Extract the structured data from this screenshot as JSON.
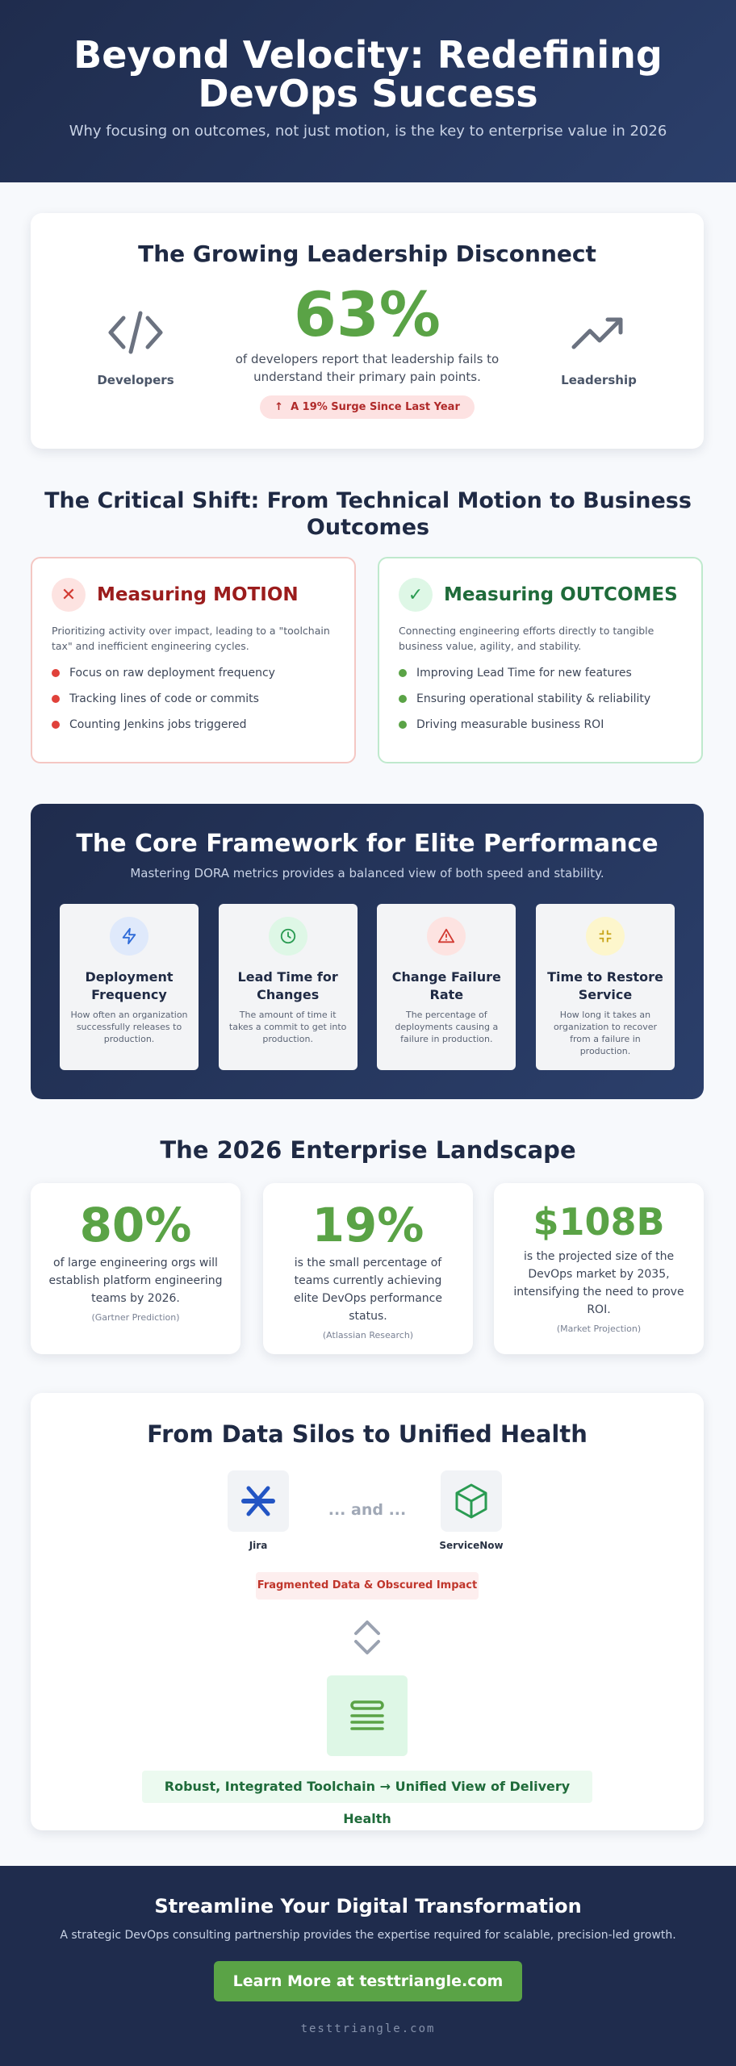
{
  "hero": {
    "title": "Beyond Velocity: Redefining DevOps Success",
    "subtitle": "Why focusing on outcomes, not just motion, is the key to enterprise value in 2026"
  },
  "disconnect": {
    "title": "The Growing Leadership Disconnect",
    "stat": "63%",
    "description": "of developers report that leadership fails to understand their primary pain points.",
    "badge": "A 19% Surge Since Last Year",
    "left_label": "Developers",
    "right_label": "Leadership",
    "left_icon": "code-icon",
    "right_icon": "trending-up-icon"
  },
  "shift": {
    "title": "The Critical Shift: From Technical Motion to Business Outcomes",
    "motion": {
      "title": "Measuring MOTION",
      "intro": "Prioritizing activity over impact, leading to a \"toolchain tax\" and inefficient engineering cycles.",
      "items": [
        "Focus on raw deployment frequency",
        "Tracking lines of code or commits",
        "Counting Jenkins jobs triggered"
      ]
    },
    "outcomes": {
      "title": "Measuring OUTCOMES",
      "intro": "Connecting engineering efforts directly to tangible business value, agility, and stability.",
      "items": [
        "Improving Lead Time for new features",
        "Ensuring operational stability & reliability",
        "Driving measurable business ROI"
      ]
    }
  },
  "framework": {
    "title": "The Core Framework for Elite Performance",
    "subtitle": "Mastering DORA metrics provides a balanced view of both speed and stability.",
    "metrics": [
      {
        "title": "Deployment Frequency",
        "desc": "How often an organization successfully releases to production.",
        "icon": "lightning-icon",
        "color": "#2f6bd8",
        "bg": "#dfe9fb"
      },
      {
        "title": "Lead Time for Changes",
        "desc": "The amount of time it takes a commit to get into production.",
        "icon": "clock-icon",
        "color": "#2a9b52",
        "bg": "#def7e6"
      },
      {
        "title": "Change Failure Rate",
        "desc": "The percentage of deployments causing a failure in production.",
        "icon": "warning-icon",
        "color": "#d23a32",
        "bg": "#fde3e1"
      },
      {
        "title": "Time to Restore Service",
        "desc": "How long it takes an organization to recover from a failure in production.",
        "icon": "minimize-icon",
        "color": "#c8a418",
        "bg": "#fdf6cc"
      }
    ]
  },
  "landscape": {
    "title": "The 2026 Enterprise Landscape",
    "stats": [
      {
        "value": "80%",
        "desc": "of large engineering orgs will establish platform engineering teams by 2026.",
        "source": "(Gartner Prediction)"
      },
      {
        "value": "19%",
        "desc": "is the small percentage of teams currently achieving elite DevOps performance status.",
        "source": "(Atlassian Research)"
      },
      {
        "value": "$108B",
        "desc": "is the projected size of the DevOps market by 2035, intensifying the need to prove ROI.",
        "source": "(Market Projection)"
      }
    ]
  },
  "silos": {
    "title": "From Data Silos to Unified Health",
    "tool_left": "Jira",
    "tool_right": "ServiceNow",
    "and_text": "... and ...",
    "fragmented": "Fragmented Data & Obscured Impact",
    "result": "Robust, Integrated Toolchain → Unified View of Delivery Health"
  },
  "footer": {
    "title": "Streamline Your Digital Transformation",
    "subtitle": "A strategic DevOps consulting partnership provides the expertise required for scalable, precision-led growth.",
    "cta": "Learn More at testtriangle.com",
    "site": "testtriangle.com"
  },
  "colors": {
    "accent_green": "#5aa346",
    "navy": "#1f2c4d",
    "red": "#d23a32"
  }
}
